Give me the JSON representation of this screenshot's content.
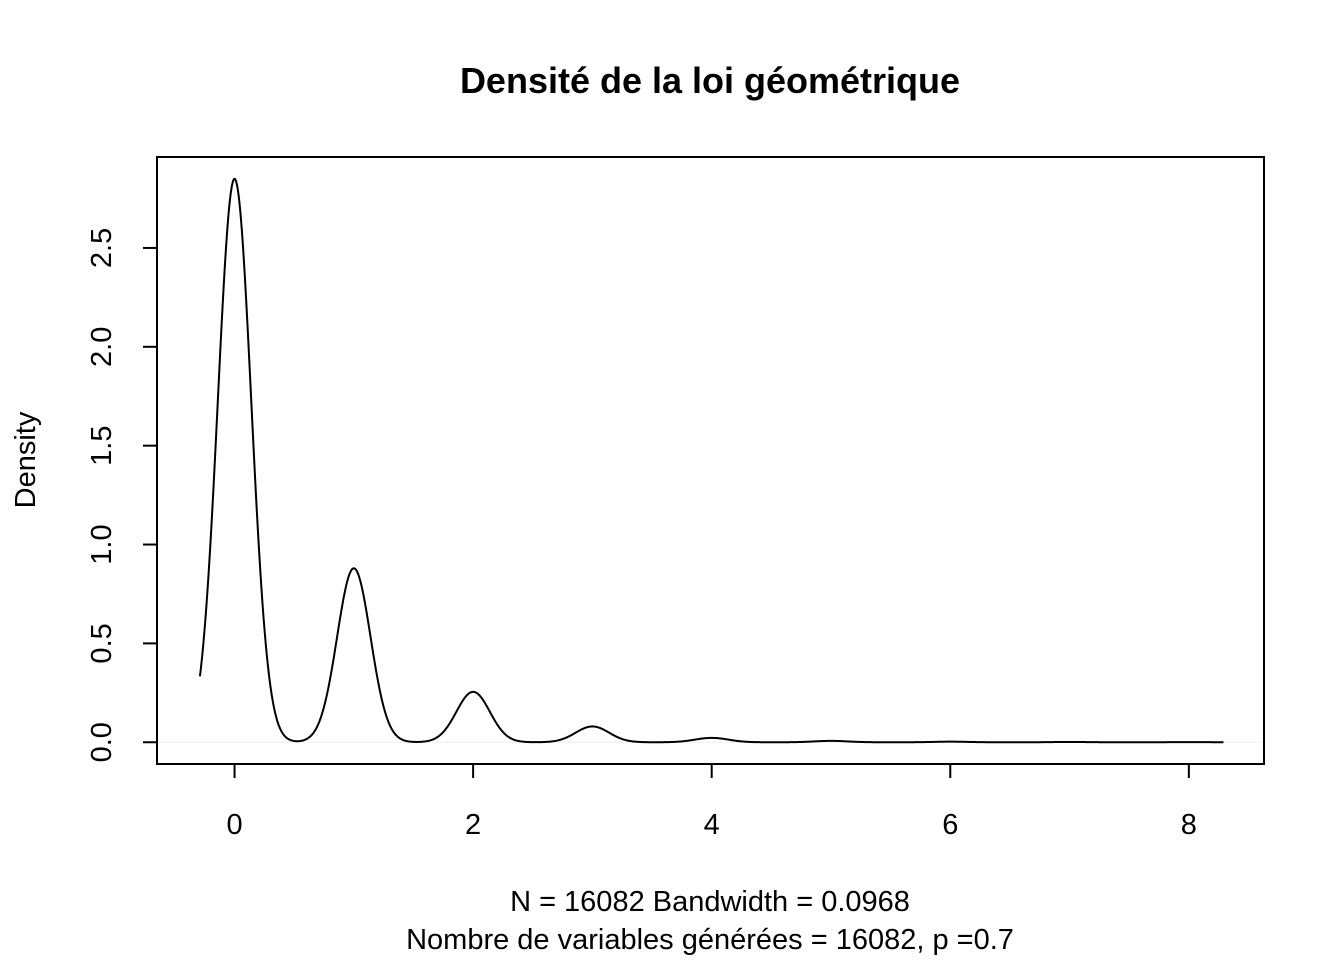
{
  "chart_data": {
    "type": "line",
    "title": "Densité de la loi géométrique",
    "ylabel": "Density",
    "xlabel_lines": [
      "N = 16082   Bandwidth = 0.0968",
      "Nombre de variables générées = 16082, p =0.7"
    ],
    "xlim": [
      -0.65,
      8.63
    ],
    "ylim": [
      -0.11,
      2.96
    ],
    "x_ticks": [
      0,
      2,
      4,
      6,
      8
    ],
    "x_tick_labels": [
      "0",
      "2",
      "4",
      "6",
      "8"
    ],
    "y_ticks": [
      0.0,
      0.5,
      1.0,
      1.5,
      2.0,
      2.5
    ],
    "y_tick_labels": [
      "0.0",
      "0.5",
      "1.0",
      "1.5",
      "2.0",
      "2.5"
    ],
    "grid": false,
    "series": [
      {
        "peaks": [
          {
            "x": 0,
            "y": 2.85
          },
          {
            "x": 1,
            "y": 0.88
          },
          {
            "x": 2,
            "y": 0.255
          },
          {
            "x": 3,
            "y": 0.08
          },
          {
            "x": 4,
            "y": 0.022
          },
          {
            "x": 5,
            "y": 0.007
          },
          {
            "x": 6,
            "y": 0.003
          },
          {
            "x": 7,
            "y": 0.0015
          },
          {
            "x": 8,
            "y": 0.0008
          }
        ],
        "x_range": [
          -0.29,
          8.29
        ]
      }
    ]
  }
}
